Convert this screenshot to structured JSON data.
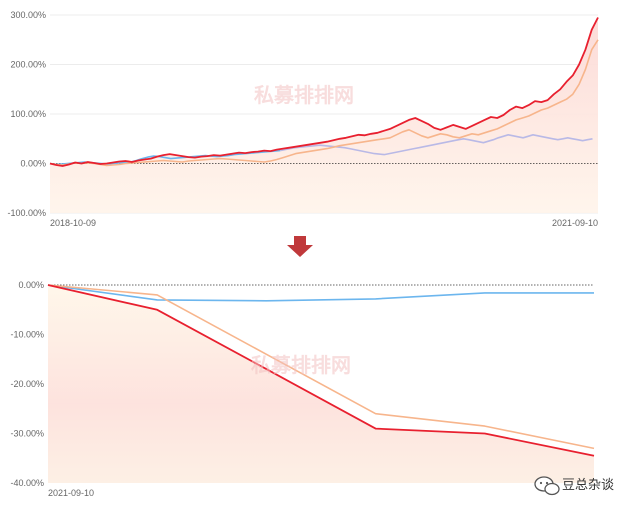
{
  "colors": {
    "fund": "#e8202f",
    "benchmark_orange": "#f7b58c",
    "index_blue": "#6cb6ee",
    "index_lavender": "#b9b9e6",
    "area_top": "#fcd9d6",
    "arrow": "#c0393b",
    "zero_line": "#333333",
    "grid": "#e6e6e6"
  },
  "watermark_icon": "wechat-like-chat-bubble-icon",
  "arrow_icon": "down-arrow-icon",
  "brand": {
    "label": "豆总杂谈",
    "icon": "wechat-icon"
  },
  "chart_data": [
    {
      "type": "line",
      "panel": "full-history",
      "ytick_labels": [
        "300.00%",
        "200.00%",
        "100.00%",
        "0.00%",
        "-100.00%"
      ],
      "ylim": [
        -100,
        300
      ],
      "x_start_label": "2018-10-09",
      "x_end_label": "2021-09-10",
      "zero_line": "dotted",
      "watermark": "私募排排网",
      "series": [
        {
          "color_key": "fund",
          "values": [
            0,
            -3,
            -5,
            -2,
            2,
            0,
            3,
            1,
            -1,
            0,
            2,
            4,
            5,
            3,
            6,
            8,
            10,
            14,
            17,
            19,
            17,
            15,
            13,
            12,
            14,
            15,
            17,
            16,
            18,
            20,
            22,
            21,
            23,
            24,
            26,
            25,
            28,
            30,
            32,
            34,
            36,
            38,
            40,
            42,
            44,
            47,
            50,
            52,
            55,
            58,
            57,
            60,
            62,
            66,
            70,
            76,
            82,
            88,
            92,
            86,
            80,
            72,
            68,
            73,
            78,
            74,
            70,
            76,
            82,
            88,
            94,
            92,
            98,
            108,
            115,
            112,
            118,
            126,
            124,
            128,
            140,
            150,
            165,
            178,
            200,
            230,
            270,
            295
          ]
        },
        {
          "color_key": "benchmark_orange",
          "values": [
            0,
            -2,
            -3,
            -1,
            1,
            0,
            1,
            0,
            -2,
            -4,
            -3,
            -2,
            0,
            1,
            2,
            3,
            4,
            5,
            6,
            5,
            4,
            3,
            5,
            6,
            7,
            8,
            9,
            10,
            9,
            8,
            7,
            6,
            5,
            4,
            3,
            5,
            8,
            12,
            16,
            20,
            22,
            24,
            26,
            28,
            30,
            33,
            36,
            38,
            40,
            42,
            44,
            46,
            48,
            50,
            52,
            58,
            64,
            68,
            62,
            56,
            52,
            56,
            60,
            58,
            54,
            52,
            56,
            60,
            58,
            62,
            66,
            70,
            76,
            82,
            88,
            92,
            96,
            102,
            108,
            112,
            118,
            124,
            130,
            140,
            160,
            190,
            230,
            250
          ]
        },
        {
          "color_key": "index_blue",
          "values": [
            0,
            -2,
            -1,
            0,
            1,
            2,
            3,
            2,
            1,
            0,
            -1,
            0,
            1,
            2,
            3,
            6,
            10,
            13,
            15,
            14,
            12,
            10,
            11,
            12,
            13,
            14,
            15,
            16,
            15,
            14,
            15,
            16,
            18,
            19,
            20,
            21,
            22,
            23,
            24,
            25,
            26
          ]
        },
        {
          "color_key": "index_lavender",
          "values": [
            26,
            28,
            30,
            32,
            33,
            34,
            35,
            36,
            37,
            36,
            35,
            34,
            33,
            32,
            30,
            28,
            26,
            24,
            22,
            20,
            19,
            18,
            20,
            22,
            24,
            26,
            28,
            30,
            32,
            34,
            36,
            38,
            40,
            42,
            44,
            46,
            48,
            50,
            48,
            46,
            44,
            42,
            45,
            48,
            52,
            55,
            58,
            56,
            54,
            52,
            55,
            58,
            56,
            54,
            52,
            50,
            48,
            50,
            52,
            50,
            48,
            46,
            48,
            50
          ]
        }
      ]
    },
    {
      "type": "line",
      "panel": "zoomed-drawdown",
      "ytick_labels": [
        "0.00%",
        "-10.00%",
        "-20.00%",
        "-30.00%",
        "-40.00%"
      ],
      "ylim": [
        -40,
        0
      ],
      "x_start_label": "2021-09-10",
      "zero_line": "dotted",
      "watermark": "私募排排网",
      "x": [
        0,
        1,
        2,
        3,
        4,
        5
      ],
      "series": [
        {
          "color_key": "fund",
          "values": [
            0,
            -5,
            -17,
            -29,
            -30,
            -34.5
          ]
        },
        {
          "color_key": "benchmark_orange",
          "values": [
            0,
            -2,
            -14,
            -26,
            -28.5,
            -33
          ]
        },
        {
          "color_key": "index_blue",
          "values": [
            0,
            -3,
            -3.2,
            -2.8,
            -1.6,
            -1.6
          ]
        }
      ]
    }
  ]
}
